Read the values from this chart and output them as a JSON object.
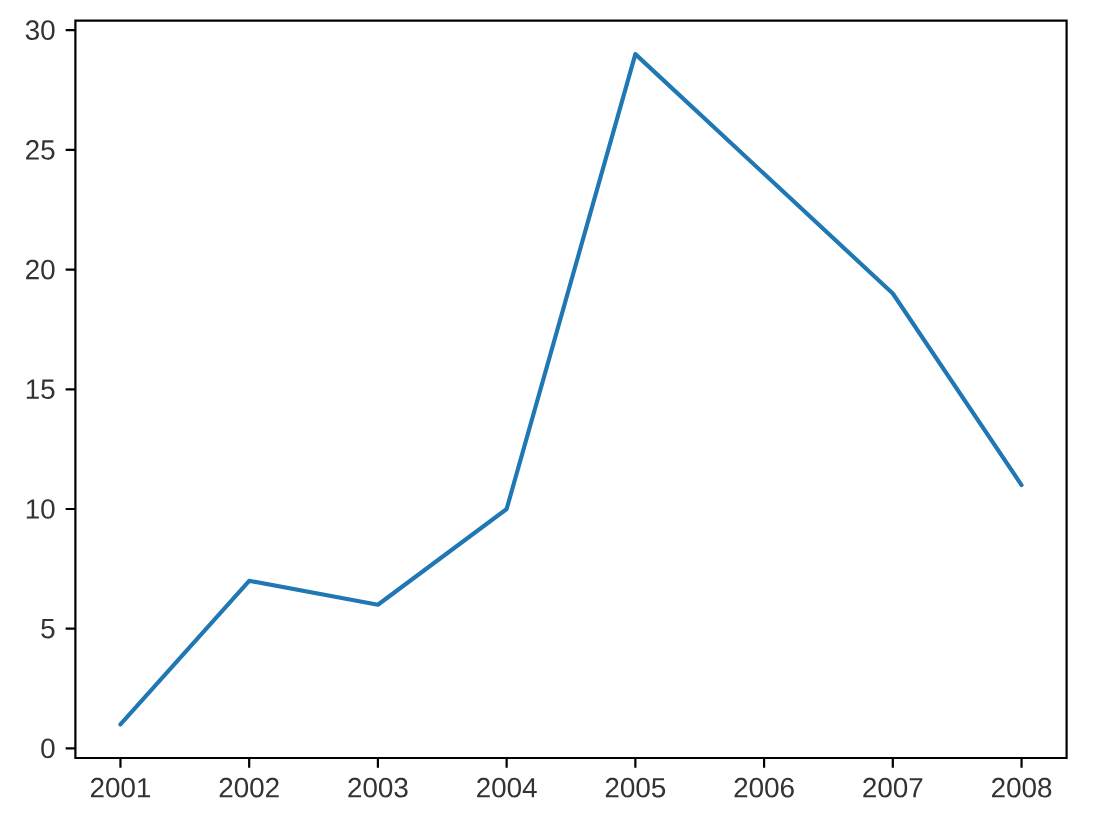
{
  "chart_data": {
    "type": "line",
    "x": [
      2001,
      2002,
      2003,
      2004,
      2005,
      2006,
      2007,
      2008
    ],
    "series": [
      {
        "color": "#1f77b4",
        "values": [
          1,
          7,
          6,
          10,
          29,
          24,
          19,
          11
        ]
      }
    ],
    "xlim": [
      2000.65,
      2008.35
    ],
    "ylim": [
      -0.4,
      30.4
    ],
    "xticks": [
      2001,
      2002,
      2003,
      2004,
      2005,
      2006,
      2007,
      2008
    ],
    "yticks": [
      0,
      5,
      10,
      15,
      20,
      25,
      30
    ]
  }
}
